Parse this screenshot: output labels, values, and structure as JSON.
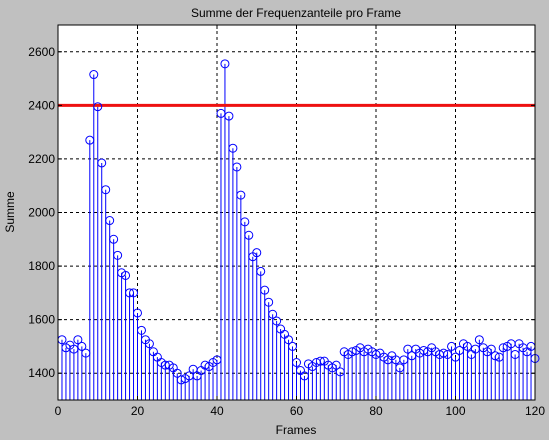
{
  "chart_data": {
    "type": "stem",
    "title": "Summe der Frequenzanteile pro Frame",
    "xlabel": "Frames",
    "ylabel": "Summe",
    "xlim": [
      0,
      120
    ],
    "ylim": [
      1300,
      2700
    ],
    "xticks": [
      0,
      20,
      40,
      60,
      80,
      100,
      120
    ],
    "yticks": [
      1400,
      1600,
      1800,
      2000,
      2200,
      2400,
      2600
    ],
    "grid": true,
    "baseline": 1300,
    "threshold": 2400,
    "colors": {
      "stem": "#0000ff",
      "threshold": "#ee1111",
      "background": "#c0c0c0",
      "axes": "#ffffff"
    },
    "series": [
      {
        "x": [
          1,
          2,
          3,
          4,
          5,
          6,
          7,
          8,
          9,
          10,
          11,
          12,
          13,
          14,
          15,
          16,
          17,
          18,
          19,
          20,
          21,
          22,
          23,
          24,
          25,
          26,
          27,
          28,
          29,
          30,
          31,
          32,
          33,
          34,
          35,
          36,
          37,
          38,
          39,
          40,
          41,
          42,
          43,
          44,
          45,
          46,
          47,
          48,
          49,
          50,
          51,
          52,
          53,
          54,
          55,
          56,
          57,
          58,
          59,
          60,
          61,
          62,
          63,
          64,
          65,
          66,
          67,
          68,
          69,
          70,
          71,
          72,
          73,
          74,
          75,
          76,
          77,
          78,
          79,
          80,
          81,
          82,
          83,
          84,
          85,
          86,
          87,
          88,
          89,
          90,
          91,
          92,
          93,
          94,
          95,
          96,
          97,
          98,
          99,
          100,
          101,
          102,
          103,
          104,
          105,
          106,
          107,
          108,
          109,
          110,
          111,
          112,
          113,
          114,
          115,
          116,
          117,
          118,
          119,
          120
        ],
        "y": [
          1525,
          1495,
          1505,
          1490,
          1525,
          1500,
          1475,
          2270,
          2515,
          2395,
          2185,
          2085,
          1970,
          1900,
          1840,
          1775,
          1765,
          1700,
          1700,
          1625,
          1560,
          1525,
          1510,
          1480,
          1460,
          1440,
          1430,
          1430,
          1420,
          1400,
          1375,
          1380,
          1390,
          1415,
          1390,
          1410,
          1430,
          1425,
          1440,
          1450,
          2370,
          2555,
          2360,
          2240,
          2170,
          2065,
          1965,
          1915,
          1835,
          1850,
          1780,
          1710,
          1665,
          1620,
          1595,
          1565,
          1545,
          1525,
          1500,
          1440,
          1410,
          1390,
          1435,
          1425,
          1440,
          1445,
          1445,
          1430,
          1420,
          1430,
          1405,
          1480,
          1470,
          1480,
          1485,
          1495,
          1480,
          1490,
          1480,
          1470,
          1475,
          1460,
          1450,
          1465,
          1450,
          1420,
          1450,
          1490,
          1465,
          1490,
          1475,
          1485,
          1480,
          1495,
          1480,
          1470,
          1475,
          1470,
          1500,
          1460,
          1485,
          1510,
          1500,
          1470,
          1490,
          1525,
          1495,
          1480,
          1490,
          1465,
          1460,
          1495,
          1500,
          1510,
          1470,
          1510,
          1495,
          1480,
          1500,
          1455
        ]
      }
    ]
  }
}
